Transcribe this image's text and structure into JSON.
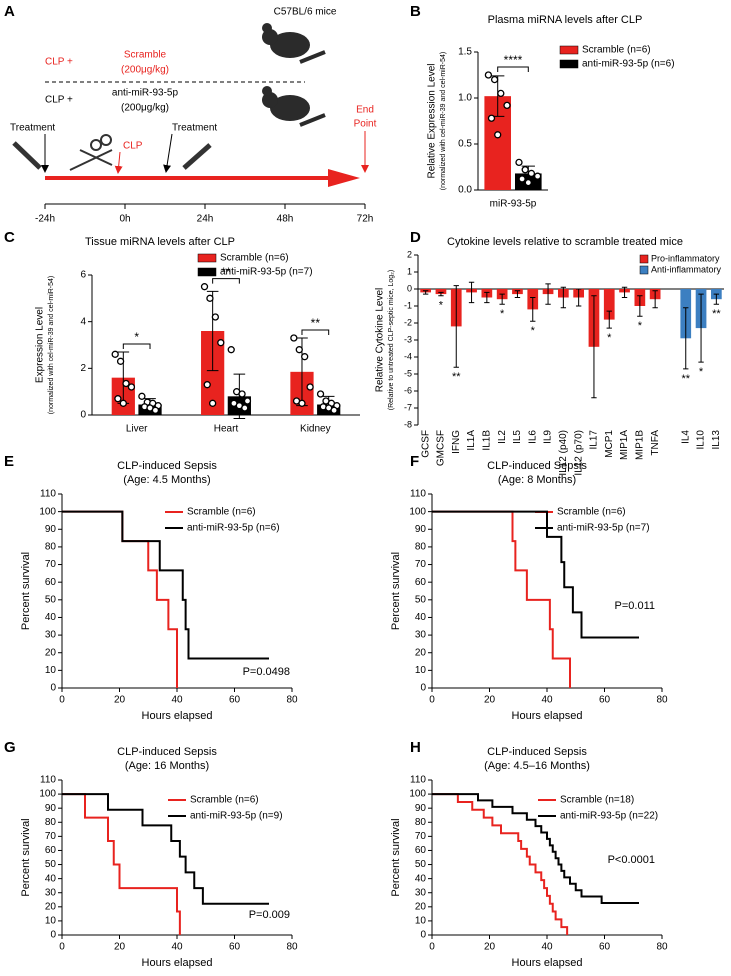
{
  "panel_a": {
    "label": "A",
    "strain": "C57BL/6 mice",
    "groups": [
      {
        "prefix": "CLP +",
        "name": "Scramble",
        "dose": "(200μg/kg)"
      },
      {
        "prefix": "CLP +",
        "name": "anti-miR-93-5p",
        "dose": "(200μg/kg)"
      }
    ],
    "events": [
      "Treatment",
      "CLP",
      "Treatment"
    ],
    "end": [
      "End",
      "Point"
    ],
    "timeline": [
      "-24h",
      "0h",
      "24h",
      "48h",
      "72h"
    ]
  },
  "chart_data": [
    {
      "type": "bar",
      "panel": "B",
      "title": "Plasma miRNA levels after CLP",
      "ylabel": "Relative Expression Level",
      "ylabel_note": "(normalized with cel-miR-39 and cel-miR-54)",
      "categories": [
        "miR-93-5p"
      ],
      "series": [
        {
          "name": "Scramble (n=6)",
          "color": "#e8231f",
          "values": [
            1.02
          ],
          "errors": [
            0.22
          ],
          "points": [
            [
              1.25,
              1.2,
              1.05,
              0.92,
              0.78,
              0.6
            ]
          ]
        },
        {
          "name": "anti-miR-93-5p (n=6)",
          "color": "#000000",
          "values": [
            0.18
          ],
          "errors": [
            0.08
          ],
          "points": [
            [
              0.3,
              0.22,
              0.18,
              0.15,
              0.12,
              0.08
            ]
          ]
        }
      ],
      "significance": [
        "****"
      ],
      "ylim": [
        0,
        1.5
      ],
      "yticks": [
        {
          "value": 0,
          "label": "0.0"
        },
        0.5,
        {
          "value": 1,
          "label": "1.0"
        },
        1.5
      ]
    },
    {
      "type": "bar",
      "panel": "C",
      "title": "Tissue miRNA levels after CLP",
      "ylabel": "Expression Level",
      "ylabel_note": "(normalized with cel-miR-39 and cel-miR-54)",
      "categories": [
        "Liver",
        "Heart",
        "Kidney"
      ],
      "series": [
        {
          "name": "Scramble (n=6)",
          "color": "#e8231f",
          "values": [
            1.6,
            3.6,
            1.85
          ],
          "errors": [
            1.1,
            1.7,
            1.45
          ],
          "points": [
            [
              2.6,
              2.3,
              1.35,
              1.2,
              0.7,
              0.5
            ],
            [
              5.5,
              5.0,
              4.2,
              3.1,
              1.3,
              0.5
            ],
            [
              3.3,
              2.8,
              2.5,
              1.2,
              0.6,
              0.5
            ]
          ]
        },
        {
          "name": "anti-miR-93-5p (n=7)",
          "color": "#000000",
          "values": [
            0.45,
            0.8,
            0.45
          ],
          "errors": [
            0.25,
            0.95,
            0.35
          ],
          "points": [
            [
              0.8,
              0.55,
              0.5,
              0.4,
              0.35,
              0.3,
              0.2
            ],
            [
              2.8,
              1.0,
              0.9,
              0.6,
              0.5,
              0.4,
              0.3
            ],
            [
              0.9,
              0.6,
              0.5,
              0.4,
              0.35,
              0.3,
              0.2
            ]
          ]
        }
      ],
      "significance": [
        "*",
        "**",
        "**"
      ],
      "ylim": [
        0,
        6
      ],
      "yticks": [
        0,
        2,
        4,
        6
      ]
    },
    {
      "type": "bar",
      "panel": "D",
      "title": "Cytokine levels relative to scramble treated mice",
      "ylabel": "Relative Cytokine Level",
      "ylabel_note": "(Relative to untreated CLP-septic mice, Log₂)",
      "categories": [
        "GCSF",
        "GMCSF",
        "IFNG",
        "IL1A",
        "IL1B",
        "IL2",
        "IL5",
        "IL6",
        "IL9",
        "IL12 (p40)",
        "IL12 (p70)",
        "IL17",
        "MCP1",
        "MIP1A",
        "MIP1B",
        "TNFA",
        null,
        "IL4",
        "IL10",
        "IL13"
      ],
      "series": [
        {
          "name": "Pro-inflammatory",
          "color": "#e8231f",
          "values": [
            -0.2,
            -0.3,
            -2.2,
            -0.2,
            -0.5,
            -0.6,
            -0.3,
            -1.2,
            -0.3,
            -0.5,
            -0.5,
            -3.4,
            -1.8,
            -0.2,
            -1.0,
            -0.6,
            null,
            null,
            null,
            null
          ],
          "errors": [
            0.1,
            0.1,
            2.4,
            0.6,
            0.3,
            0.3,
            0.2,
            0.7,
            0.6,
            0.6,
            0.5,
            3.0,
            0.5,
            0.3,
            0.6,
            0.5,
            null,
            null,
            null,
            null
          ]
        },
        {
          "name": "Anti-inflammatory",
          "color": "#3c7fc1",
          "values": [
            null,
            null,
            null,
            null,
            null,
            null,
            null,
            null,
            null,
            null,
            null,
            null,
            null,
            null,
            null,
            null,
            null,
            -2.9,
            -2.3,
            -0.6
          ],
          "errors": [
            null,
            null,
            null,
            null,
            null,
            null,
            null,
            null,
            null,
            null,
            null,
            null,
            null,
            null,
            null,
            null,
            null,
            1.8,
            2.0,
            0.3
          ]
        }
      ],
      "significance": [
        null,
        "*",
        "**",
        null,
        null,
        "*",
        null,
        "*",
        null,
        null,
        null,
        null,
        "*",
        null,
        "*",
        null,
        null,
        "**",
        "*",
        "**"
      ],
      "ylim": [
        -8,
        2
      ],
      "yticks": [
        -8,
        -7,
        -6,
        -5,
        -4,
        -3,
        -2,
        -1,
        0,
        1,
        2
      ]
    },
    {
      "type": "survival",
      "panel": "E",
      "title": "CLP-induced Sepsis",
      "subtitle": "(Age: 4.5 Months)",
      "xlabel": "Hours elapsed",
      "ylabel": "Percent survival",
      "annotation": "P=0.0498",
      "series": [
        {
          "name": "Scramble (n=6)",
          "color": "#e8231f",
          "x": [
            0,
            21,
            21,
            30,
            30,
            33,
            33,
            37,
            37,
            40,
            40
          ],
          "values": [
            100,
            100,
            83.3,
            83.3,
            66.7,
            66.7,
            50,
            50,
            33.3,
            33.3,
            0
          ]
        },
        {
          "name": "anti-miR-93-5p (n=6)",
          "color": "#000000",
          "x": [
            0,
            21,
            21,
            34,
            34,
            42,
            42,
            43,
            43,
            44,
            44,
            72
          ],
          "values": [
            100,
            100,
            83.3,
            83.3,
            66.7,
            66.7,
            50,
            50,
            33.3,
            33.3,
            16.7,
            16.7
          ]
        }
      ],
      "xlim": [
        0,
        80
      ],
      "xticks": [
        0,
        20,
        40,
        60,
        80
      ],
      "ylim": [
        0,
        110
      ],
      "yticks": [
        0,
        10,
        20,
        30,
        40,
        50,
        60,
        70,
        80,
        90,
        100,
        110
      ]
    },
    {
      "type": "survival",
      "panel": "F",
      "title": "CLP-induced Sepsis",
      "subtitle": "(Age: 8 Months)",
      "xlabel": "Hours elapsed",
      "ylabel": "Percent survival",
      "annotation": "P=0.011",
      "series": [
        {
          "name": "Scramble (n=6)",
          "color": "#e8231f",
          "x": [
            0,
            28,
            28,
            29,
            29,
            33,
            33,
            41,
            41,
            42,
            42,
            48,
            48
          ],
          "values": [
            100,
            100,
            83.3,
            83.3,
            66.7,
            66.7,
            50,
            50,
            33.3,
            33.3,
            16.7,
            16.7,
            0
          ]
        },
        {
          "name": "anti-miR-93-5p (n=7)",
          "color": "#000000",
          "x": [
            0,
            40,
            40,
            45,
            45,
            46,
            46,
            49,
            49,
            52,
            52,
            72
          ],
          "values": [
            100,
            100,
            85.7,
            85.7,
            71.4,
            71.4,
            57.1,
            57.1,
            42.9,
            42.9,
            28.6,
            28.6
          ]
        }
      ],
      "xlim": [
        0,
        80
      ],
      "xticks": [
        0,
        20,
        40,
        60,
        80
      ],
      "ylim": [
        0,
        110
      ],
      "yticks": [
        0,
        10,
        20,
        30,
        40,
        50,
        60,
        70,
        80,
        90,
        100,
        110
      ]
    },
    {
      "type": "survival",
      "panel": "G",
      "title": "CLP-induced Sepsis",
      "subtitle": "(Age: 16 Months)",
      "xlabel": "Hours elapsed",
      "ylabel": "Percent survival",
      "annotation": "P=0.009",
      "series": [
        {
          "name": "Scramble (n=6)",
          "color": "#e8231f",
          "x": [
            0,
            8,
            8,
            16,
            16,
            18,
            18,
            20,
            20,
            40,
            40,
            41,
            41
          ],
          "values": [
            100,
            100,
            83.3,
            83.3,
            66.7,
            66.7,
            50,
            50,
            33.3,
            33.3,
            16.7,
            16.7,
            0
          ]
        },
        {
          "name": "anti-miR-93-5p (n=9)",
          "color": "#000000",
          "x": [
            0,
            16,
            16,
            28,
            28,
            38,
            38,
            41,
            41,
            43,
            43,
            46,
            46,
            49,
            49,
            72
          ],
          "values": [
            100,
            100,
            88.9,
            88.9,
            77.8,
            77.8,
            66.7,
            66.7,
            55.6,
            55.6,
            44.4,
            44.4,
            33.3,
            33.3,
            22.2,
            22.2
          ]
        }
      ],
      "xlim": [
        0,
        80
      ],
      "xticks": [
        0,
        20,
        40,
        60,
        80
      ],
      "ylim": [
        0,
        110
      ],
      "yticks": [
        0,
        10,
        20,
        30,
        40,
        50,
        60,
        70,
        80,
        90,
        100,
        110
      ]
    },
    {
      "type": "survival",
      "panel": "H",
      "title": "CLP-induced Sepsis",
      "subtitle": "(Age: 4.5–16 Months)",
      "xlabel": "Hours elapsed",
      "ylabel": "Percent survival",
      "annotation": "P<0.0001",
      "series": [
        {
          "name": "Scramble (n=18)",
          "color": "#e8231f",
          "x": [
            0,
            9,
            9,
            14,
            14,
            18,
            18,
            21,
            21,
            24,
            24,
            30,
            30,
            31,
            31,
            33,
            33,
            34,
            34,
            36,
            36,
            38,
            38,
            39,
            39,
            40,
            40,
            41,
            41,
            42,
            42,
            43,
            43,
            45,
            45,
            47,
            47
          ],
          "values": [
            100,
            100,
            94.4,
            94.4,
            88.9,
            88.9,
            83.3,
            83.3,
            77.8,
            77.8,
            72.2,
            72.2,
            66.7,
            66.7,
            61.1,
            61.1,
            55.6,
            55.6,
            50,
            50,
            44.4,
            44.4,
            38.9,
            38.9,
            33.3,
            33.3,
            27.8,
            27.8,
            22.2,
            22.2,
            16.7,
            16.7,
            11.1,
            11.1,
            5.6,
            5.6,
            0
          ]
        },
        {
          "name": "anti-miR-93-5p (n=22)",
          "color": "#000000",
          "x": [
            0,
            16,
            16,
            21,
            21,
            28,
            28,
            33,
            33,
            36,
            36,
            38,
            38,
            40,
            40,
            41,
            41,
            42,
            42,
            43,
            43,
            44,
            44,
            45,
            45,
            46,
            46,
            48,
            48,
            50,
            50,
            52,
            52,
            59,
            59,
            72
          ],
          "values": [
            100,
            100,
            95.5,
            95.5,
            90.9,
            90.9,
            86.4,
            86.4,
            81.8,
            81.8,
            77.3,
            77.3,
            72.7,
            72.7,
            68.2,
            68.2,
            63.6,
            63.6,
            59.1,
            59.1,
            54.5,
            54.5,
            50,
            50,
            45.5,
            45.5,
            40.9,
            40.9,
            36.4,
            36.4,
            31.8,
            31.8,
            27.3,
            27.3,
            22.7,
            22.7
          ]
        }
      ],
      "xlim": [
        0,
        80
      ],
      "xticks": [
        0,
        20,
        40,
        60,
        80
      ],
      "ylim": [
        0,
        110
      ],
      "yticks": [
        0,
        10,
        20,
        30,
        40,
        50,
        60,
        70,
        80,
        90,
        100,
        110
      ]
    }
  ]
}
